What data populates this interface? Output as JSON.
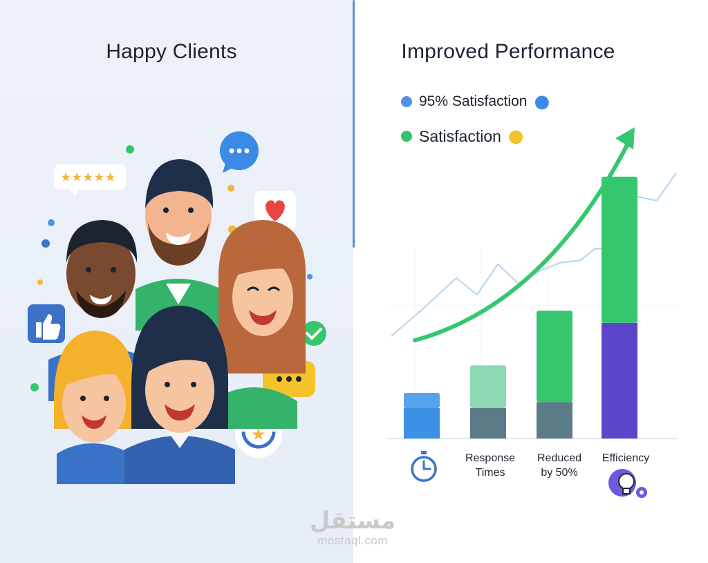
{
  "left_panel": {
    "title": "Happy Clients",
    "rating_stars": 5
  },
  "right_panel": {
    "title": "Improved Performance",
    "legend": [
      {
        "label": "95% Satisfaction",
        "color": "#4f93e6",
        "emoji": "😑"
      },
      {
        "label": "Satisfaction",
        "color": "#36c26b",
        "emoji": "😊"
      }
    ]
  },
  "chart_data": {
    "type": "bar",
    "categories": [
      "",
      "Response\nTimes",
      "Reduced\nby 50%",
      "Efficiency"
    ],
    "category_icons": [
      "stopwatch-icon",
      null,
      null,
      "lightbulb-gear-icon"
    ],
    "series": [
      {
        "values": [
          10,
          10,
          12,
          38
        ]
      },
      {
        "values": [
          5,
          14,
          30,
          48
        ]
      }
    ],
    "segment_colors": [
      [
        "#3c91e6",
        "#5b7c86",
        "#5b7c86",
        "#5d45c9"
      ],
      [
        "#57a4ee",
        "#8bd8b3",
        "#34c76d",
        "#34c76d"
      ]
    ],
    "ylim": [
      0,
      100
    ],
    "grid": true,
    "trend_arrow_color": "#34c76d",
    "line_color": "#b5d4ee"
  },
  "watermark": {
    "arabic": "مستقل",
    "latin": "mostaql.com"
  }
}
